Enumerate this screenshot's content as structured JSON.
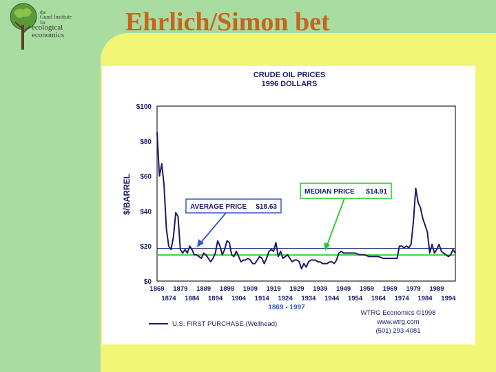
{
  "slide": {
    "title": "Ehrlich/Simon bet"
  },
  "logo": {
    "line1": "the",
    "line2": "Gund Institute",
    "line3": "for",
    "line4": "ecological",
    "line5": "economics"
  },
  "colors": {
    "background": "#a8dca0",
    "panel": "#f2f676",
    "title": "#c8641c",
    "series": "#1a1a66",
    "average_line": "#1a1a66",
    "median_line": "#22cc22",
    "callout_border_avg": "#3355cc",
    "callout_border_med": "#22cc22"
  },
  "chart_data": {
    "type": "line",
    "title": "CRUDE OIL PRICES",
    "subtitle": "1996 DOLLARS",
    "ylabel": "$/BARREL",
    "xlabel": "1869 - 1997",
    "ylim": [
      0,
      100
    ],
    "xlim": [
      1869,
      1997
    ],
    "grid": false,
    "y_ticks": [
      "$0",
      "$20",
      "$40",
      "$60",
      "$80",
      "$100"
    ],
    "x_ticks_top": [
      "1869",
      "1879",
      "1889",
      "1899",
      "1909",
      "1919",
      "1929",
      "1939",
      "1949",
      "1959",
      "1969",
      "1979",
      "1989"
    ],
    "x_ticks_bottom": [
      "1874",
      "1884",
      "1894",
      "1904",
      "1914",
      "1924",
      "1934",
      "1944",
      "1954",
      "1964",
      "1974",
      "1984",
      "1994"
    ],
    "series": [
      {
        "name": "U.S. FIRST PURCHASE (Wellhead)",
        "x": [
          1869,
          1870,
          1871,
          1872,
          1873,
          1874,
          1875,
          1876,
          1877,
          1878,
          1879,
          1880,
          1881,
          1882,
          1883,
          1884,
          1885,
          1886,
          1887,
          1888,
          1889,
          1890,
          1891,
          1892,
          1893,
          1894,
          1895,
          1896,
          1897,
          1898,
          1899,
          1900,
          1901,
          1902,
          1903,
          1904,
          1905,
          1906,
          1907,
          1908,
          1909,
          1910,
          1911,
          1912,
          1913,
          1914,
          1915,
          1916,
          1917,
          1918,
          1919,
          1920,
          1921,
          1922,
          1923,
          1924,
          1925,
          1926,
          1927,
          1928,
          1929,
          1930,
          1931,
          1932,
          1933,
          1934,
          1935,
          1936,
          1937,
          1938,
          1939,
          1940,
          1941,
          1942,
          1943,
          1944,
          1945,
          1946,
          1947,
          1948,
          1949,
          1950,
          1952,
          1954,
          1956,
          1958,
          1960,
          1962,
          1964,
          1966,
          1968,
          1970,
          1972,
          1973,
          1974,
          1975,
          1976,
          1977,
          1978,
          1979,
          1980,
          1981,
          1982,
          1983,
          1984,
          1985,
          1986,
          1987,
          1988,
          1989,
          1990,
          1991,
          1992,
          1993,
          1994,
          1995,
          1996,
          1997
        ],
        "y": [
          85,
          60,
          67,
          55,
          30,
          20,
          18,
          25,
          39,
          37,
          18,
          16,
          18,
          16,
          20,
          18,
          15,
          15,
          14,
          13,
          16,
          15,
          13,
          11,
          13,
          16,
          23,
          20,
          15,
          18,
          23,
          22,
          15,
          14,
          17,
          14,
          11,
          12,
          12,
          13,
          12,
          10,
          10,
          12,
          14,
          13,
          10,
          13,
          17,
          18,
          17,
          22,
          14,
          17,
          13,
          14,
          15,
          13,
          11,
          12,
          12,
          11,
          7,
          10,
          8,
          11,
          12,
          12,
          12,
          11,
          11,
          10,
          10,
          10,
          11,
          11,
          10,
          12,
          16,
          17,
          16,
          16,
          16,
          16,
          15,
          15,
          14,
          14,
          14,
          13,
          13,
          13,
          13,
          20,
          20,
          19,
          20,
          19,
          21,
          34,
          53,
          45,
          42,
          36,
          32,
          28,
          16,
          21,
          16,
          18,
          21,
          17,
          16,
          15,
          14,
          15,
          18,
          16
        ]
      }
    ],
    "reference_lines": [
      {
        "label": "AVERAGE PRICE",
        "value_text": "$18.63",
        "value": 18.63
      },
      {
        "label": "MEDIAN PRICE",
        "value_text": "$14.91",
        "value": 14.91
      }
    ],
    "credits": [
      "WTRG Economics ©1998",
      "www.wtrg.com",
      "(501) 293-4081"
    ]
  }
}
